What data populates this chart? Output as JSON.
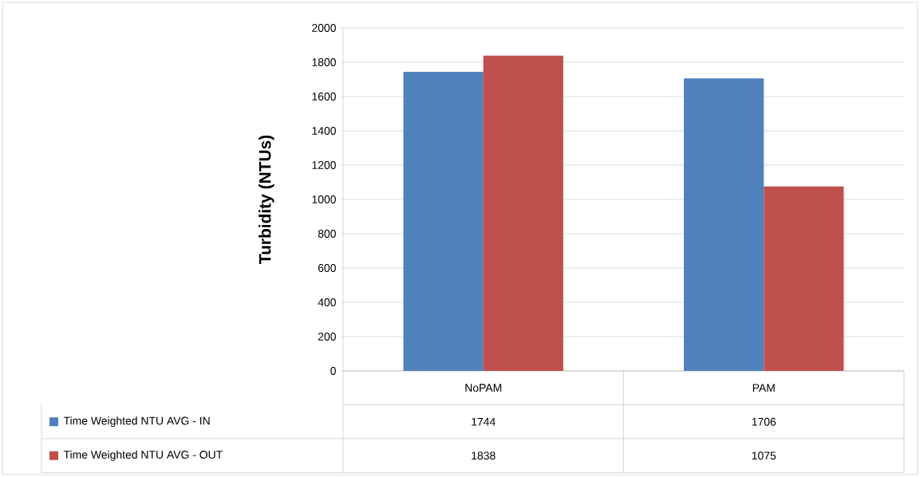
{
  "chart_data": {
    "type": "bar",
    "ylabel": "Turbidity (NTUs)",
    "categories": [
      "NoPAM",
      "PAM"
    ],
    "series": [
      {
        "name": "Time Weighted NTU AVG - IN",
        "color": "#4f81bd",
        "values": [
          1744,
          1706
        ]
      },
      {
        "name": "Time Weighted NTU AVG - OUT",
        "color": "#c0504d",
        "values": [
          1838,
          1075
        ]
      }
    ],
    "ylim": [
      0,
      2000
    ],
    "yticks": [
      0,
      200,
      400,
      600,
      800,
      1000,
      1200,
      1400,
      1600,
      1800,
      2000
    ],
    "grid": "y",
    "legend": "bottom left",
    "data_labels": true
  }
}
